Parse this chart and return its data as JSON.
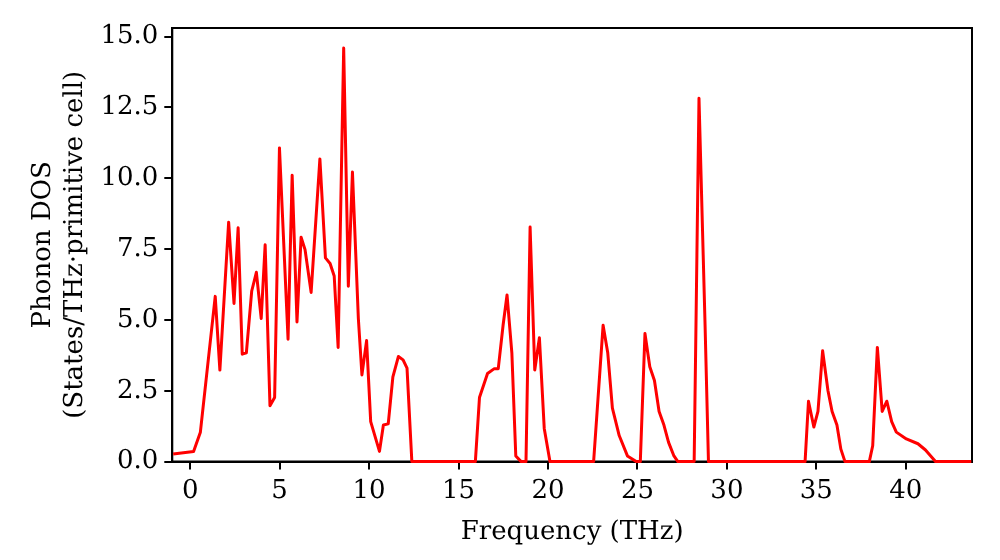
{
  "chart_data": {
    "type": "line",
    "xlabel": "Frequency (THz)",
    "ylabel": "Phonon DOS\n(States/THz·primitive cell)",
    "x": [
      -0.95,
      0.19,
      0.57,
      1.4,
      1.66,
      2.15,
      2.45,
      2.68,
      2.91,
      3.14,
      3.44,
      3.7,
      3.97,
      4.19,
      4.46,
      4.72,
      4.99,
      5.47,
      5.7,
      5.97,
      6.2,
      6.42,
      6.76,
      7.25,
      7.56,
      7.82,
      8.05,
      8.27,
      8.58,
      8.84,
      9.07,
      9.4,
      9.6,
      9.86,
      10.09,
      10.58,
      10.8,
      11.07,
      11.33,
      11.64,
      11.9,
      12.12,
      12.39,
      15.94,
      16.17,
      16.62,
      17.0,
      17.22,
      17.49,
      17.71,
      17.98,
      18.2,
      18.5,
      18.77,
      19.0,
      19.26,
      19.52,
      19.79,
      20.11,
      22.55,
      23.08,
      23.34,
      23.6,
      23.98,
      24.44,
      24.93,
      25.16,
      25.42,
      25.69,
      25.95,
      26.21,
      26.48,
      26.74,
      27.04,
      27.26,
      28.17,
      28.44,
      28.78,
      28.97,
      34.37,
      34.56,
      34.86,
      35.09,
      35.35,
      35.65,
      35.88,
      36.15,
      36.37,
      36.6,
      37.96,
      38.15,
      38.41,
      38.68,
      38.94,
      39.21,
      39.47,
      40.03,
      40.68,
      41.1,
      41.66,
      43.66
    ],
    "series": [
      {
        "color": "#ff0000",
        "values": [
          0.27,
          0.36,
          1.04,
          5.83,
          3.23,
          8.45,
          5.58,
          8.25,
          3.79,
          3.84,
          6.02,
          6.68,
          5.05,
          7.65,
          1.97,
          2.26,
          11.07,
          4.32,
          10.1,
          4.93,
          7.92,
          7.48,
          5.97,
          10.68,
          7.19,
          6.99,
          6.55,
          4.03,
          14.59,
          6.19,
          10.22,
          5.05,
          3.06,
          4.27,
          1.41,
          0.36,
          1.29,
          1.33,
          2.99,
          3.71,
          3.59,
          3.3,
          0,
          0,
          2.26,
          3.11,
          3.28,
          3.28,
          4.81,
          5.88,
          3.84,
          0.2,
          0,
          0,
          8.28,
          3.23,
          4.37,
          1.17,
          0,
          0,
          4.81,
          3.84,
          1.89,
          0.92,
          0.2,
          0,
          0,
          4.52,
          3.35,
          2.86,
          1.77,
          1.29,
          0.68,
          0.2,
          0,
          0,
          12.82,
          4.81,
          0,
          0,
          2.13,
          1.22,
          1.77,
          3.91,
          2.5,
          1.77,
          1.29,
          0.44,
          0,
          0,
          0.56,
          4.03,
          1.77,
          2.13,
          1.41,
          1.04,
          0.8,
          0.63,
          0.41,
          0,
          0
        ]
      }
    ],
    "xlim": [
      -1,
      43.7
    ],
    "ylim": [
      0,
      15.3
    ],
    "xticks": [
      0,
      5,
      10,
      15,
      20,
      25,
      30,
      35,
      40
    ],
    "yticks": [
      {
        "value": 0,
        "label": "0.0"
      },
      {
        "value": 2.5,
        "label": "2.5"
      },
      {
        "value": 5,
        "label": "5.0"
      },
      {
        "value": 7.5,
        "label": "7.5"
      },
      {
        "value": 10,
        "label": "10.0"
      },
      {
        "value": 12.5,
        "label": "12.5"
      },
      {
        "value": 15,
        "label": "15.0"
      }
    ],
    "grid": false,
    "legend": false,
    "marker": "none",
    "line_style": "solid"
  }
}
